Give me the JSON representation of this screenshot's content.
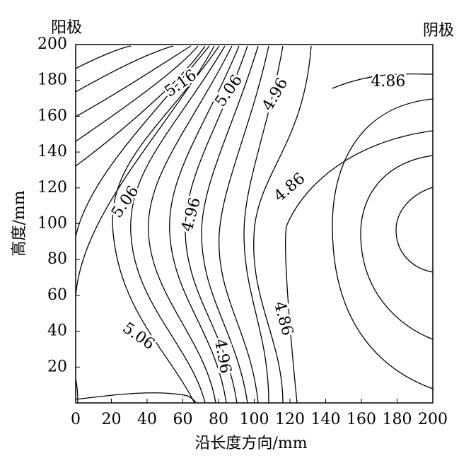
{
  "chart_data": {
    "type": "contour",
    "x_label": "沿长度方向/mm",
    "y_label": "高度/mm",
    "left_note": "阳极",
    "right_note": "阴极",
    "xlim": [
      0,
      200
    ],
    "ylim": [
      0,
      200
    ],
    "xticks": [
      0,
      20,
      40,
      60,
      80,
      100,
      120,
      140,
      160,
      180,
      200
    ],
    "yticks": [
      20,
      40,
      60,
      80,
      100,
      120,
      140,
      160,
      180,
      200
    ],
    "contour_labels": [
      {
        "value": 5.16,
        "x": 59,
        "y": 178
      },
      {
        "value": 5.06,
        "x": 86,
        "y": 174
      },
      {
        "value": 4.96,
        "x": 112,
        "y": 172
      },
      {
        "value": 4.86,
        "x": 175,
        "y": 179
      },
      {
        "value": 5.06,
        "x": 28,
        "y": 112
      },
      {
        "value": 4.96,
        "x": 65,
        "y": 105
      },
      {
        "value": 4.86,
        "x": 120,
        "y": 120
      },
      {
        "value": 5.06,
        "x": 35,
        "y": 37
      },
      {
        "value": 4.96,
        "x": 82,
        "y": 26
      },
      {
        "value": 4.86,
        "x": 116,
        "y": 47
      }
    ]
  }
}
